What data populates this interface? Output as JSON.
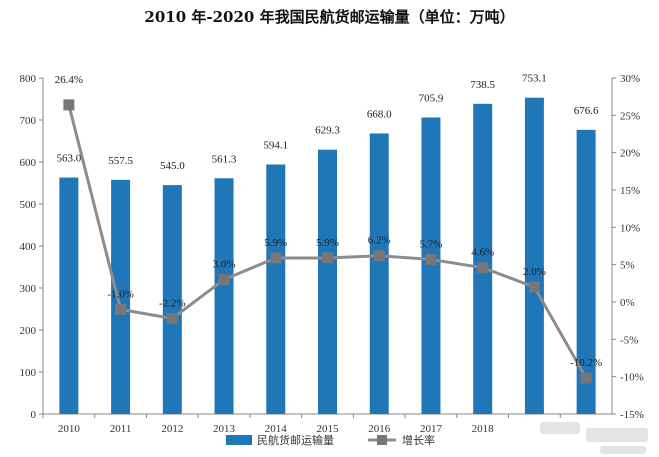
{
  "chart_data": {
    "type": "bar",
    "title": "2010 年-2020 年我国民航货邮运输量（单位：万吨）",
    "categories": [
      "2010",
      "2011",
      "2012",
      "2013",
      "2014",
      "2015",
      "2016",
      "2017",
      "2018",
      "",
      ""
    ],
    "series": [
      {
        "name": "民航货邮运输量",
        "type": "bar",
        "axis": "left",
        "color": "#1f77b8",
        "values": [
          563.0,
          557.5,
          545.0,
          561.3,
          594.1,
          629.3,
          668.0,
          705.9,
          738.5,
          753.1,
          676.6
        ],
        "labels": [
          "563.0",
          "557.5",
          "545.0",
          "561.3",
          "594.1",
          "629.3",
          "668.0",
          "705.9",
          "738.5",
          "753.1",
          "676.6"
        ]
      },
      {
        "name": "增长率",
        "type": "line",
        "axis": "right",
        "color": "#7f7f7f",
        "values": [
          26.4,
          -1.0,
          -2.2,
          3.0,
          5.9,
          5.9,
          6.2,
          5.7,
          4.6,
          2.0,
          -10.2
        ],
        "labels": [
          "26.4%",
          "-1.0%",
          "-2.2%",
          "3.0%",
          "5.9%",
          "5.9%",
          "6.2%",
          "5.7%",
          "4.6%",
          "2.0%",
          "-10.2%"
        ]
      }
    ],
    "y_left": {
      "ylim": [
        0,
        800
      ],
      "ticks": [
        "0",
        "100",
        "200",
        "300",
        "400",
        "500",
        "600",
        "700",
        "800"
      ]
    },
    "y_right": {
      "ylim": [
        -15,
        30
      ],
      "ticks": [
        "-15%",
        "-10%",
        "-5%",
        "0%",
        "5%",
        "10%",
        "15%",
        "20%",
        "25%",
        "30%"
      ]
    },
    "grid": false,
    "legend": "bottom-center",
    "watermark": "bottom-right (blurred)"
  }
}
